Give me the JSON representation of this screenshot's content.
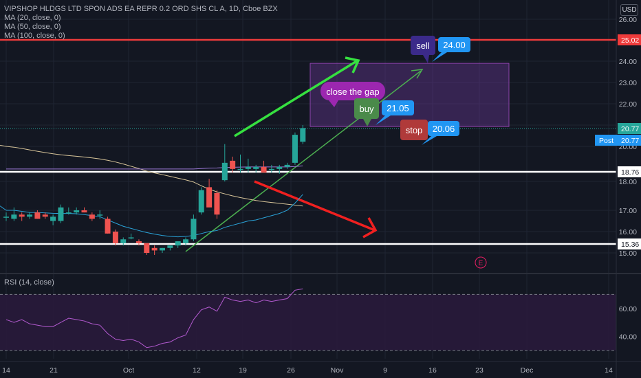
{
  "title": "VIPSHOP HLDGS LTD SPON ADS EA REPR 0.2 ORD SHS CL A, 1D, Cboe BZX",
  "indicators": [
    "MA (20, close, 0)",
    "MA (50, close, 0)",
    "MA (100, close, 0)"
  ],
  "rsi_label": "RSI (14, close)",
  "currency": "USD",
  "colors": {
    "up": "#26a69a",
    "down": "#ef5350",
    "background": "#131722",
    "ma20": "#2aa3d8",
    "ma100": "#d9c69a",
    "rsi": "#b35ad0"
  },
  "chart_data": {
    "type": "candlestick",
    "x_ticks": [
      "14",
      "21",
      "Oct",
      "12",
      "19",
      "26",
      "Nov",
      "9",
      "16",
      "23",
      "Dec",
      "14"
    ],
    "y_ticks": [
      "26.00",
      "24.00",
      "23.00",
      "22.00",
      "21.00",
      "20.00",
      "18.00",
      "17.00",
      "16.00",
      "15.00"
    ],
    "rsi_ticks": [
      "60.00",
      "40.00"
    ],
    "price_labels": [
      {
        "label": "25.02",
        "value": 25.02,
        "color": "#ef3b3b"
      },
      {
        "label": "20.77",
        "value": 20.77,
        "color": "#26a69a"
      },
      {
        "label": "18.76",
        "value": 18.76,
        "color": "#ffffff"
      },
      {
        "label": "15.36",
        "value": 15.36,
        "color": "#ffffff"
      }
    ],
    "post_label": {
      "prefix": "Post",
      "value": "20.77",
      "color": "#2196f3"
    },
    "candles": [
      {
        "o": 16.7,
        "h": 16.9,
        "l": 16.5,
        "c": 16.7
      },
      {
        "o": 16.6,
        "h": 17.1,
        "l": 16.5,
        "c": 16.8
      },
      {
        "o": 16.8,
        "h": 16.9,
        "l": 16.5,
        "c": 16.7
      },
      {
        "o": 16.7,
        "h": 16.9,
        "l": 16.6,
        "c": 16.8
      },
      {
        "o": 16.9,
        "h": 17.0,
        "l": 16.6,
        "c": 16.6
      },
      {
        "o": 16.8,
        "h": 16.9,
        "l": 16.6,
        "c": 16.7
      },
      {
        "o": 16.5,
        "h": 16.8,
        "l": 16.3,
        "c": 16.7
      },
      {
        "o": 16.5,
        "h": 17.2,
        "l": 16.4,
        "c": 17.1
      },
      {
        "o": 16.9,
        "h": 17.1,
        "l": 16.8,
        "c": 16.9
      },
      {
        "o": 16.9,
        "h": 17.1,
        "l": 16.8,
        "c": 17.0
      },
      {
        "o": 17.0,
        "h": 17.1,
        "l": 16.9,
        "c": 16.9
      },
      {
        "o": 16.8,
        "h": 16.9,
        "l": 16.5,
        "c": 16.6
      },
      {
        "o": 16.8,
        "h": 17.0,
        "l": 16.6,
        "c": 16.8
      },
      {
        "o": 16.6,
        "h": 16.7,
        "l": 15.9,
        "c": 15.9
      },
      {
        "o": 16.0,
        "h": 16.1,
        "l": 15.3,
        "c": 15.4
      },
      {
        "o": 15.4,
        "h": 15.7,
        "l": 15.3,
        "c": 15.6
      },
      {
        "o": 15.7,
        "h": 15.9,
        "l": 15.6,
        "c": 15.7
      },
      {
        "o": 15.5,
        "h": 15.6,
        "l": 15.3,
        "c": 15.4
      },
      {
        "o": 15.4,
        "h": 15.4,
        "l": 14.9,
        "c": 15.0
      },
      {
        "o": 15.2,
        "h": 15.3,
        "l": 14.9,
        "c": 15.1
      },
      {
        "o": 15.1,
        "h": 15.2,
        "l": 15.0,
        "c": 15.2
      },
      {
        "o": 15.2,
        "h": 15.3,
        "l": 15.1,
        "c": 15.3
      },
      {
        "o": 15.3,
        "h": 15.5,
        "l": 15.2,
        "c": 15.5
      },
      {
        "o": 15.4,
        "h": 15.7,
        "l": 15.3,
        "c": 15.6
      },
      {
        "o": 15.6,
        "h": 16.8,
        "l": 15.5,
        "c": 16.6
      },
      {
        "o": 16.9,
        "h": 17.8,
        "l": 16.8,
        "c": 17.7
      },
      {
        "o": 17.8,
        "h": 18.2,
        "l": 17.2,
        "c": 17.1
      },
      {
        "o": 17.6,
        "h": 17.7,
        "l": 16.6,
        "c": 16.8
      },
      {
        "o": 18.1,
        "h": 20.1,
        "l": 18.0,
        "c": 19.2
      },
      {
        "o": 19.3,
        "h": 19.5,
        "l": 18.7,
        "c": 18.9
      },
      {
        "o": 18.9,
        "h": 19.6,
        "l": 18.7,
        "c": 18.9
      },
      {
        "o": 18.9,
        "h": 19.4,
        "l": 18.7,
        "c": 19.0
      },
      {
        "o": 18.9,
        "h": 19.1,
        "l": 18.7,
        "c": 19.0
      },
      {
        "o": 19.0,
        "h": 19.3,
        "l": 18.7,
        "c": 18.7
      },
      {
        "o": 18.9,
        "h": 19.1,
        "l": 18.7,
        "c": 18.9
      },
      {
        "o": 18.9,
        "h": 19.1,
        "l": 18.6,
        "c": 19.0
      },
      {
        "o": 19.0,
        "h": 19.2,
        "l": 18.9,
        "c": 19.1
      },
      {
        "o": 19.2,
        "h": 20.6,
        "l": 19.1,
        "c": 20.5
      },
      {
        "o": 20.2,
        "h": 21.0,
        "l": 20.1,
        "c": 20.8
      }
    ],
    "ma20": [
      17.0,
      17.0,
      16.95,
      16.9,
      16.9,
      16.88,
      16.86,
      16.85,
      16.85,
      16.84,
      16.8,
      16.75,
      16.7,
      16.55,
      16.4,
      16.25,
      16.15,
      16.05,
      15.95,
      15.87,
      15.8,
      15.75,
      15.73,
      15.75,
      15.8,
      15.9,
      16.0,
      16.05,
      16.2,
      16.3,
      16.4,
      16.5,
      16.55,
      16.65,
      16.75,
      16.85,
      17.0,
      17.25,
      17.55
    ],
    "ma100": [
      20.0,
      19.96,
      19.9,
      19.83,
      19.76,
      19.7,
      19.64,
      19.59,
      19.55,
      19.52,
      19.48,
      19.44,
      19.39,
      19.32,
      19.24,
      19.14,
      19.03,
      18.92,
      18.8,
      18.67,
      18.54,
      18.4,
      18.26,
      18.12,
      17.98,
      17.85,
      17.73,
      17.64,
      17.57,
      17.5,
      17.44,
      17.39,
      17.34,
      17.3,
      17.27,
      17.24,
      17.21,
      17.18,
      17.15
    ],
    "ma50": [
      18.9,
      18.9,
      18.9,
      18.9,
      18.9,
      18.9,
      18.9,
      18.9,
      18.9,
      18.9,
      18.9,
      18.9,
      18.9,
      18.9,
      18.9,
      18.9,
      18.9,
      18.9,
      18.9,
      18.9,
      18.9,
      18.9,
      18.9,
      18.9,
      18.9,
      18.92,
      18.94,
      18.95,
      18.97,
      18.98,
      18.99,
      19.0,
      19.0,
      19.0,
      19.0,
      19.0,
      19.0,
      19.02,
      19.05
    ],
    "rsi": [
      52,
      50,
      52,
      49,
      48,
      47,
      47,
      50,
      53,
      52,
      51,
      49,
      48,
      42,
      38,
      37,
      38,
      36,
      32,
      33,
      35,
      36,
      39,
      41,
      52,
      59,
      61,
      58,
      68,
      66,
      65,
      66,
      64,
      66,
      65,
      66,
      67,
      73,
      74
    ],
    "y_range": [
      14.8,
      26.6
    ],
    "rsi_range": [
      24,
      82
    ],
    "annotations": [
      {
        "text": "sell",
        "value": "24.00",
        "color": "#3b2a8a"
      },
      {
        "text": "close the gap",
        "color": "#9c27b0"
      },
      {
        "text": "buy",
        "value": "21.05",
        "color": "#4a8a4a"
      },
      {
        "text": "stop",
        "value": "20.06",
        "color": "#b03a3a"
      },
      {
        "text": "E",
        "color": "#e91e63"
      }
    ]
  }
}
